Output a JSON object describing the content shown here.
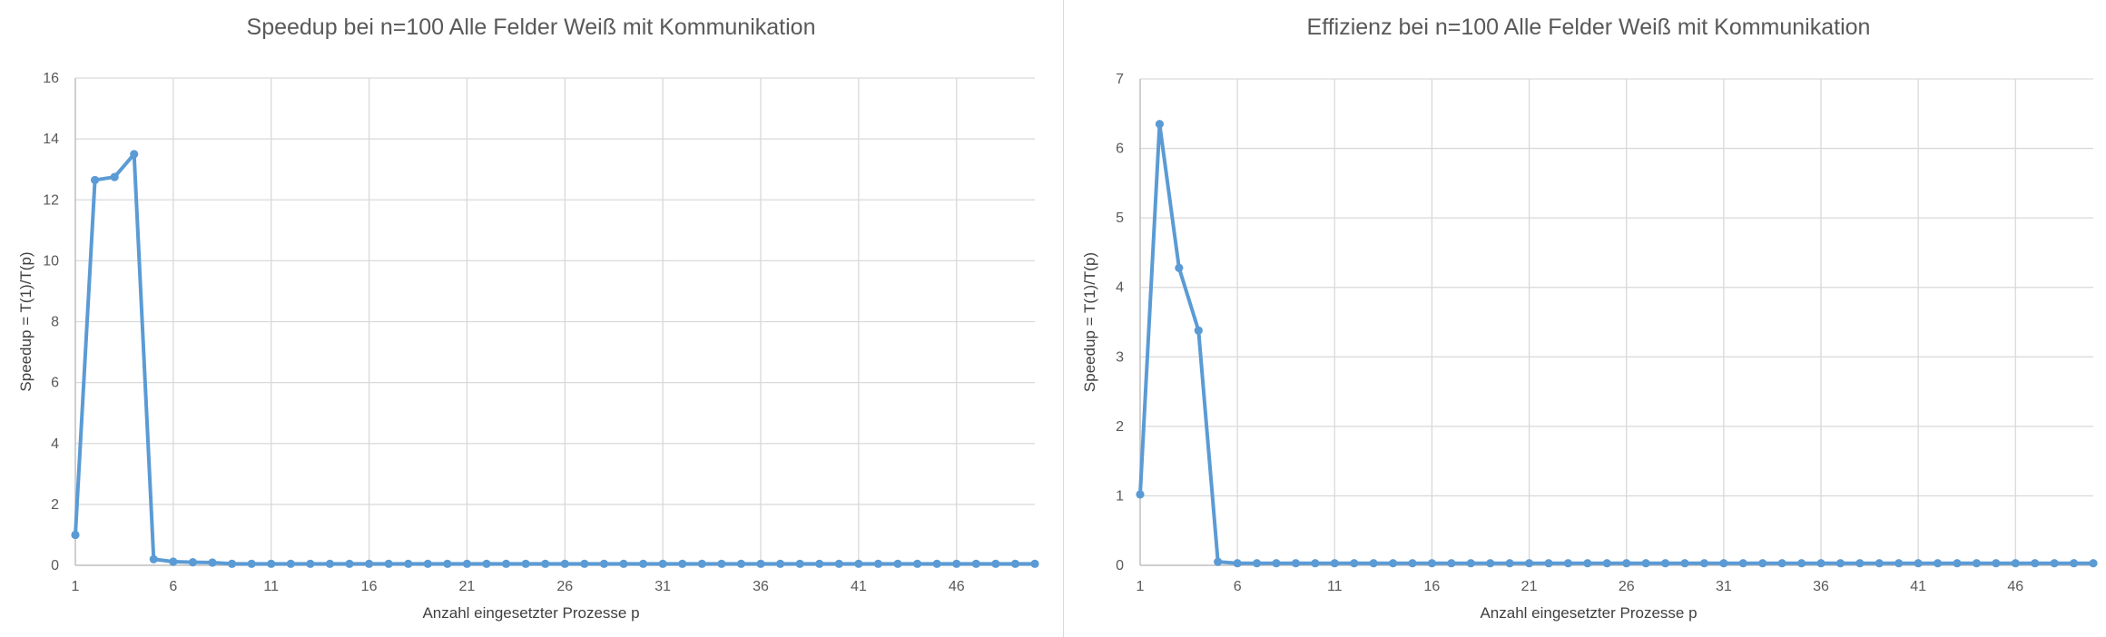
{
  "chart_data": [
    {
      "type": "line",
      "title": "Speedup bei n=100 Alle Felder Weiß mit Kommunikation",
      "xlabel": "Anzahl eingesetzter Prozesse p",
      "ylabel": "Speedup = T(1)/T(p)",
      "ylim": [
        0,
        16
      ],
      "yticks": [
        0,
        2,
        4,
        6,
        8,
        10,
        12,
        14,
        16
      ],
      "xlim": [
        1,
        50
      ],
      "xticks": [
        1,
        6,
        11,
        16,
        21,
        26,
        31,
        36,
        41,
        46
      ],
      "grid": true,
      "color": "#5b9bd5",
      "x": [
        1,
        2,
        3,
        4,
        5,
        6,
        7,
        8,
        9,
        10,
        11,
        12,
        13,
        14,
        15,
        16,
        17,
        18,
        19,
        20,
        21,
        22,
        23,
        24,
        25,
        26,
        27,
        28,
        29,
        30,
        31,
        32,
        33,
        34,
        35,
        36,
        37,
        38,
        39,
        40,
        41,
        42,
        43,
        44,
        45,
        46,
        47,
        48,
        49,
        50
      ],
      "series": [
        {
          "values": [
            1.0,
            12.65,
            12.75,
            13.5,
            0.2,
            0.12,
            0.1,
            0.09,
            0.05,
            0.05,
            0.05,
            0.05,
            0.05,
            0.05,
            0.05,
            0.05,
            0.05,
            0.05,
            0.05,
            0.05,
            0.05,
            0.05,
            0.05,
            0.05,
            0.05,
            0.05,
            0.05,
            0.05,
            0.05,
            0.05,
            0.05,
            0.05,
            0.05,
            0.05,
            0.05,
            0.05,
            0.05,
            0.05,
            0.05,
            0.05,
            0.05,
            0.05,
            0.05,
            0.05,
            0.05,
            0.05,
            0.05,
            0.05,
            0.05,
            0.05
          ]
        }
      ]
    },
    {
      "type": "line",
      "title": "Effizienz bei n=100 Alle Felder Weiß mit Kommunikation",
      "xlabel": "Anzahl eingesetzter Prozesse p",
      "ylabel": "Speedup = T(1)/T(p)",
      "ylim": [
        0,
        7
      ],
      "yticks": [
        0,
        1,
        2,
        3,
        4,
        5,
        6,
        7
      ],
      "xlim": [
        1,
        50
      ],
      "xticks": [
        1,
        6,
        11,
        16,
        21,
        26,
        31,
        36,
        41,
        46
      ],
      "grid": true,
      "color": "#5b9bd5",
      "x": [
        1,
        2,
        3,
        4,
        5,
        6,
        7,
        8,
        9,
        10,
        11,
        12,
        13,
        14,
        15,
        16,
        17,
        18,
        19,
        20,
        21,
        22,
        23,
        24,
        25,
        26,
        27,
        28,
        29,
        30,
        31,
        32,
        33,
        34,
        35,
        36,
        37,
        38,
        39,
        40,
        41,
        42,
        43,
        44,
        45,
        46,
        47,
        48,
        49,
        50
      ],
      "series": [
        {
          "values": [
            1.02,
            6.35,
            4.28,
            3.38,
            0.05,
            0.03,
            0.03,
            0.03,
            0.03,
            0.03,
            0.03,
            0.03,
            0.03,
            0.03,
            0.03,
            0.03,
            0.03,
            0.03,
            0.03,
            0.03,
            0.03,
            0.03,
            0.03,
            0.03,
            0.03,
            0.03,
            0.03,
            0.03,
            0.03,
            0.03,
            0.03,
            0.03,
            0.03,
            0.03,
            0.03,
            0.03,
            0.03,
            0.03,
            0.03,
            0.03,
            0.03,
            0.03,
            0.03,
            0.03,
            0.03,
            0.03,
            0.03,
            0.03,
            0.03,
            0.03
          ]
        }
      ]
    }
  ]
}
